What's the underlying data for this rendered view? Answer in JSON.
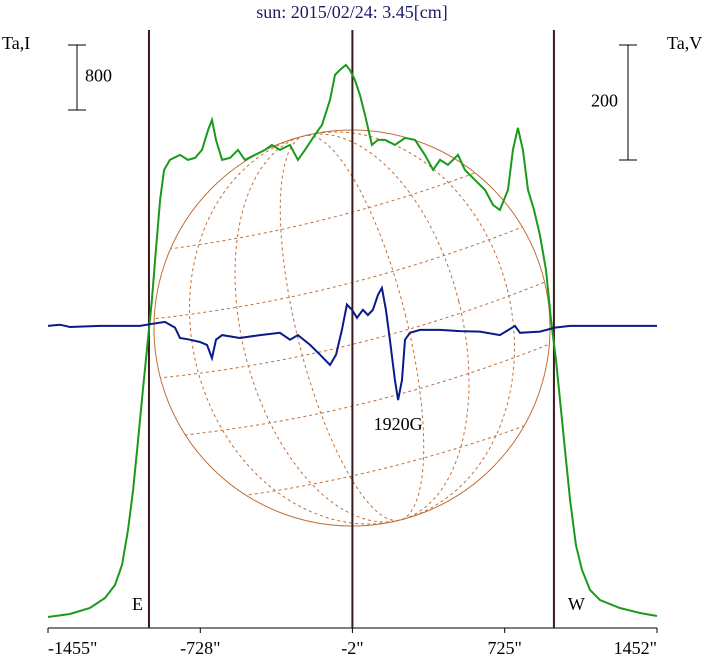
{
  "chart_data": {
    "type": "line",
    "title": "sun: 2015/02/24: 3.45[cm]",
    "y_label": "Ta,I",
    "y2_label": "Ta,V",
    "xlim": [
      -1455,
      1452
    ],
    "ylim": [
      0,
      7200
    ],
    "y2lim": [
      -520,
      497
    ],
    "xticks": [
      {
        "value": -1455,
        "label": "-1455\""
      },
      {
        "value": -728,
        "label": "-728\""
      },
      {
        "value": -2,
        "label": "-2\""
      },
      {
        "value": 725,
        "label": "725\""
      },
      {
        "value": 1452,
        "label": "1452\""
      }
    ],
    "scale_bars": [
      {
        "value": 800,
        "axis": "y"
      },
      {
        "value": 200,
        "axis": "y2"
      }
    ],
    "vlines": [
      {
        "value": -973,
        "label": "E"
      },
      {
        "value": -2
      },
      {
        "value": 960,
        "label": "W"
      }
    ],
    "annotation": "1920G",
    "series": [
      {
        "name": "Ta,I",
        "color": "#1a9a1a",
        "axis": "y",
        "x": [
          -1455,
          -1350,
          -1255,
          -1183,
          -1135,
          -1102,
          -1073,
          -1049,
          -1025,
          -1002,
          -978,
          -959,
          -940,
          -920,
          -901,
          -873,
          -825,
          -787,
          -753,
          -720,
          -691,
          -672,
          -653,
          -624,
          -586,
          -548,
          -515,
          -467,
          -419,
          -386,
          -348,
          -300,
          -262,
          -228,
          -181,
          -147,
          -109,
          -85,
          -61,
          -33,
          -14,
          10,
          34,
          58,
          91,
          120,
          154,
          201,
          249,
          297,
          344,
          383,
          416,
          454,
          502,
          535,
          583,
          631,
          669,
          702,
          741,
          764,
          788,
          812,
          836,
          865,
          893,
          922,
          946,
          970,
          989,
          1013,
          1037,
          1065,
          1094,
          1132,
          1180,
          1275,
          1371,
          1452
        ],
        "values": [
          98,
          135,
          209,
          332,
          492,
          739,
          1169,
          1662,
          2277,
          2893,
          3508,
          4001,
          4616,
          5232,
          5601,
          5724,
          5786,
          5724,
          5749,
          5847,
          6093,
          6217,
          5970,
          5724,
          5749,
          5847,
          5724,
          5786,
          5847,
          5909,
          5847,
          5909,
          5724,
          5847,
          6032,
          6155,
          6463,
          6771,
          6832,
          6894,
          6832,
          6709,
          6524,
          6278,
          5909,
          5970,
          5970,
          5909,
          5995,
          5970,
          5786,
          5601,
          5724,
          5663,
          5786,
          5601,
          5478,
          5355,
          5170,
          5109,
          5355,
          5847,
          6118,
          5847,
          5355,
          5109,
          4801,
          4370,
          3755,
          3262,
          2770,
          2154,
          1539,
          985,
          677,
          431,
          308,
          209,
          148,
          111
        ]
      },
      {
        "name": "Ta,V",
        "color": "#0a1a8a",
        "axis": "y2",
        "x": [
          -1455,
          -1398,
          -1350,
          -1207,
          -1016,
          -968,
          -897,
          -849,
          -825,
          -777,
          -730,
          -696,
          -672,
          -653,
          -624,
          -539,
          -443,
          -348,
          -300,
          -262,
          -204,
          -157,
          -109,
          -80,
          -52,
          -28,
          -4,
          20,
          48,
          72,
          96,
          120,
          139,
          158,
          177,
          201,
          216,
          235,
          249,
          273,
          321,
          416,
          511,
          607,
          702,
          774,
          798,
          893,
          965,
          1037,
          1180,
          1452
        ],
        "values": [
          0,
          2,
          -2,
          0,
          0,
          3,
          7,
          -3,
          -21,
          -24,
          -28,
          -33,
          -56,
          -24,
          -16,
          -21,
          -16,
          -12,
          -24,
          -16,
          -33,
          -50,
          -68,
          -50,
          -7,
          37,
          28,
          14,
          28,
          19,
          28,
          54,
          66,
          28,
          -24,
          -94,
          -129,
          -94,
          -24,
          -12,
          -7,
          -7,
          -9,
          -10,
          -16,
          0,
          -12,
          -10,
          -3,
          0,
          0,
          0
        ]
      }
    ]
  }
}
